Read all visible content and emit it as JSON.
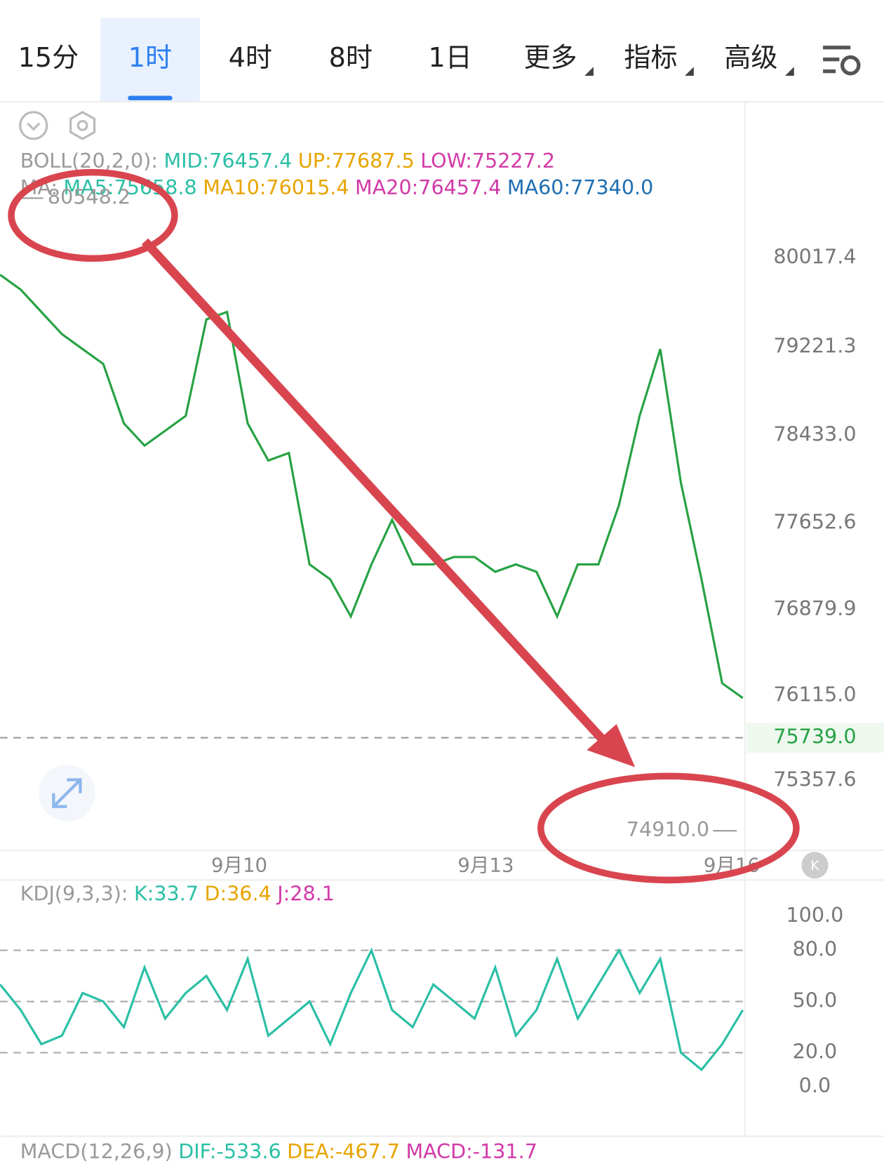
{
  "tabs": [
    "15分",
    "1时",
    "4时",
    "8时",
    "1日",
    "更多",
    "指标",
    "高级"
  ],
  "selected_tab": 1,
  "boll_row": [
    {
      "text": "BOLL(20,2,0):",
      "color": "#9a9a9a"
    },
    {
      "text": "MID:76457.4",
      "color": "#2bbfa5"
    },
    {
      "text": "UP:77687.5",
      "color": "#e8a400"
    },
    {
      "text": "LOW:75227.2",
      "color": "#d23aa8"
    }
  ],
  "ma_row": [
    {
      "text": "MA:",
      "color": "#9a9a9a"
    },
    {
      "text": "MA5:75658.8",
      "color": "#2bbfa5"
    },
    {
      "text": "MA10:76015.4",
      "color": "#e8a400"
    },
    {
      "text": "MA20:76457.4",
      "color": "#d23aa8"
    },
    {
      "text": "MA60:77340.0",
      "color": "#1f6fb2"
    }
  ],
  "kdj_row": [
    {
      "text": "KDJ(9,3,3):",
      "color": "#9a9a9a"
    },
    {
      "text": "K:33.7",
      "color": "#2bbfa5"
    },
    {
      "text": "D:36.4",
      "color": "#e8a400"
    },
    {
      "text": "J:28.1",
      "color": "#d23aa8"
    }
  ],
  "macd_row": [
    {
      "text": "MACD(12,26,9)",
      "color": "#9a9a9a"
    },
    {
      "text": "DIF:-533.6",
      "color": "#2bbfa5"
    },
    {
      "text": "DEA:-467.7",
      "color": "#e8a400"
    },
    {
      "text": "MACD:-131.7",
      "color": "#d23aa8"
    }
  ],
  "x_labels": [
    "9月10",
    "9月13",
    "9月16"
  ],
  "chart_data": [
    {
      "type": "line",
      "color": "#27a244",
      "values": [
        79865,
        79733,
        79534,
        79336,
        79203,
        79071,
        78541,
        78343,
        78475,
        78608,
        79468,
        79534,
        78541,
        78210,
        78277,
        77284,
        77151,
        76820,
        77284,
        77681,
        77284,
        77284,
        77350,
        77350,
        77218,
        77284,
        77218,
        76820,
        77284,
        77284,
        77813,
        78608,
        79203,
        78012,
        77151,
        76225,
        76093
      ],
      "ylim": [
        74735.4,
        81387.5
      ],
      "yticks": [
        80017.4,
        79221.3,
        {
          "value": 78433,
          "label": "78433.0"
        },
        77652.6,
        76879.9,
        {
          "value": 76115,
          "label": "76115.0"
        },
        75357.6
      ],
      "high": 80548.2,
      "low": {
        "value": 74910,
        "label": "74910.0"
      },
      "last": {
        "value": 75739,
        "label": "75739.0"
      },
      "last_color": "#27a244"
    },
    {
      "type": "line",
      "color": "#2bbfa5",
      "values": [
        60,
        45,
        25,
        30,
        55,
        50,
        35,
        70,
        40,
        55,
        65,
        45,
        75,
        30,
        40,
        50,
        25,
        55,
        80,
        45,
        35,
        60,
        50,
        40,
        70,
        30,
        45,
        75,
        40,
        60,
        80,
        55,
        75,
        20,
        10,
        25,
        45
      ],
      "ylim": [
        -29,
        119
      ],
      "yticks": [
        {
          "value": 100,
          "label": "100.0"
        },
        {
          "value": 80,
          "label": "80.0"
        },
        {
          "value": 50,
          "label": "50.0"
        },
        {
          "value": 20,
          "label": "20.0"
        },
        {
          "value": 0,
          "label": "0.0"
        }
      ],
      "dashed": [
        80,
        50,
        20
      ]
    }
  ]
}
